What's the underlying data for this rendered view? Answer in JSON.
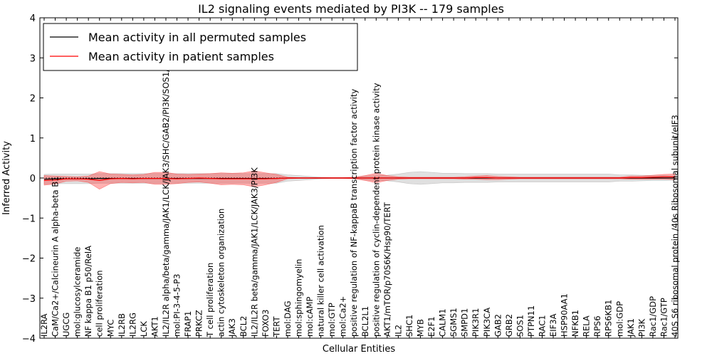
{
  "chart_data": {
    "type": "line",
    "title": "IL2 signaling events mediated by PI3K -- 179 samples",
    "xlabel": "Cellular Entities",
    "ylabel": "Inferred Activity",
    "ylim": [
      -4,
      4
    ],
    "yticks": [
      "4",
      "3",
      "2",
      "1",
      "0",
      "−1",
      "−2",
      "−3",
      "−4"
    ],
    "ytick_values": [
      4,
      3,
      2,
      1,
      0,
      -1,
      -2,
      -3,
      -4
    ],
    "grid": false,
    "legend_position": "top-left",
    "categories": [
      "IL2RA",
      "CaM/Ca2+/Calcineurin A alpha-beta B1",
      "UGCG",
      "mol:glucosylceramide",
      "NF kappa B1 p50/RelA",
      "cell proliferation",
      "MYC",
      "IL2RB",
      "IL2RG",
      "LCK",
      "AKT1",
      "IL2/IL2R alpha/beta/gamma/JAK1/LCK/JAK3/SHC/GAB2/PI3K/SOS1/SHP2",
      "mol:PI-3-4-5-P3",
      "FRAP1",
      "PRKCZ",
      "T cell proliferation",
      "actin cytoskeleton organization",
      "JAK3",
      "BCL2",
      "IL2/IL2R beta/gamma/JAK1/LCK/JAK3/PI3K",
      "FOXO3",
      "TERT",
      "mol:DAG",
      "mol:sphingomyelin",
      "mol:cAMP",
      "natural killer cell activation",
      "mol:GTP",
      "mol:Ca2+",
      "positive regulation of NF-kappaB transcription factor activity",
      "BCL2L1",
      "positive regulation of cyclin-dependent protein kinase activity",
      "AKT1/mTOR/p70S6K/Hsp90/TERT",
      "IL2",
      "SHC1",
      "MYB",
      "E2F1",
      "CALM1",
      "SGMS1",
      "SMPD1",
      "PIK3R1",
      "PIK3CA",
      "GAB2",
      "GRB2",
      "SOS1",
      "PTPN11",
      "RAC1",
      "EIF3A",
      "HSP90AA1",
      "NFKB1",
      "RELA",
      "RPS6",
      "RPS6KB1",
      "mol:GDP",
      "JAK1",
      "PI3K",
      "Rac1/GDP",
      "Rac1/GTP",
      "40S S6 ribosomal protein /40s Ribosomal subunit/eIF3"
    ],
    "series": [
      {
        "name": "Mean activity in all permuted samples",
        "color": "#000000",
        "values": [
          -0.03,
          -0.02,
          -0.02,
          -0.02,
          -0.02,
          -0.01,
          -0.01,
          -0.01,
          -0.01,
          -0.01,
          -0.01,
          -0.01,
          -0.01,
          -0.01,
          -0.01,
          -0.01,
          -0.01,
          -0.01,
          -0.01,
          -0.01,
          -0.01,
          -0.01,
          0.0,
          0.0,
          0.0,
          0.0,
          0.0,
          0.0,
          0.0,
          0.0,
          0.0,
          0.0,
          0.0,
          0.0,
          0.0,
          0.0,
          0.0,
          0.0,
          0.0,
          0.0,
          0.0,
          0.0,
          0.0,
          0.0,
          0.0,
          0.0,
          0.0,
          0.0,
          0.0,
          0.0,
          0.0,
          0.0,
          0.0,
          0.0,
          0.0,
          0.0,
          0.0,
          0.0
        ],
        "band": [
          0.12,
          0.12,
          0.12,
          0.12,
          0.12,
          0.12,
          0.12,
          0.12,
          0.12,
          0.12,
          0.12,
          0.12,
          0.12,
          0.12,
          0.12,
          0.12,
          0.12,
          0.12,
          0.12,
          0.12,
          0.12,
          0.12,
          0.08,
          0.06,
          0.04,
          0.02,
          0.01,
          0.01,
          0.01,
          0.05,
          0.06,
          0.07,
          0.1,
          0.14,
          0.16,
          0.14,
          0.12,
          0.12,
          0.11,
          0.11,
          0.11,
          0.1,
          0.1,
          0.1,
          0.1,
          0.1,
          0.1,
          0.1,
          0.1,
          0.1,
          0.1,
          0.1,
          0.08,
          0.08,
          0.07,
          0.06,
          0.06,
          0.05
        ]
      },
      {
        "name": "Mean activity in patient samples",
        "color": "#ff0000",
        "values": [
          -0.06,
          -0.05,
          -0.02,
          -0.02,
          -0.03,
          -0.06,
          -0.02,
          -0.01,
          -0.02,
          -0.01,
          -0.01,
          -0.01,
          -0.02,
          -0.01,
          0.0,
          -0.01,
          -0.02,
          -0.02,
          -0.02,
          -0.02,
          -0.02,
          -0.01,
          0.0,
          0.0,
          0.0,
          0.0,
          0.0,
          0.0,
          0.0,
          0.0,
          0.0,
          0.0,
          0.0,
          0.0,
          0.0,
          0.0,
          0.0,
          0.0,
          0.0,
          0.01,
          0.01,
          0.0,
          0.0,
          0.0,
          0.0,
          0.0,
          0.0,
          0.0,
          0.0,
          0.0,
          0.0,
          0.0,
          0.0,
          0.01,
          0.01,
          0.02,
          0.03,
          0.03
        ],
        "band": [
          0.12,
          0.1,
          0.06,
          0.05,
          0.08,
          0.22,
          0.12,
          0.1,
          0.1,
          0.1,
          0.15,
          0.15,
          0.12,
          0.1,
          0.1,
          0.12,
          0.15,
          0.14,
          0.15,
          0.2,
          0.15,
          0.1,
          0.02,
          0.01,
          0.01,
          0.01,
          0.01,
          0.01,
          0.02,
          0.06,
          0.12,
          0.06,
          0.03,
          0.02,
          0.02,
          0.02,
          0.02,
          0.02,
          0.03,
          0.04,
          0.05,
          0.04,
          0.03,
          0.02,
          0.02,
          0.02,
          0.02,
          0.02,
          0.02,
          0.02,
          0.02,
          0.02,
          0.02,
          0.04,
          0.04,
          0.05,
          0.06,
          0.07
        ]
      }
    ]
  }
}
